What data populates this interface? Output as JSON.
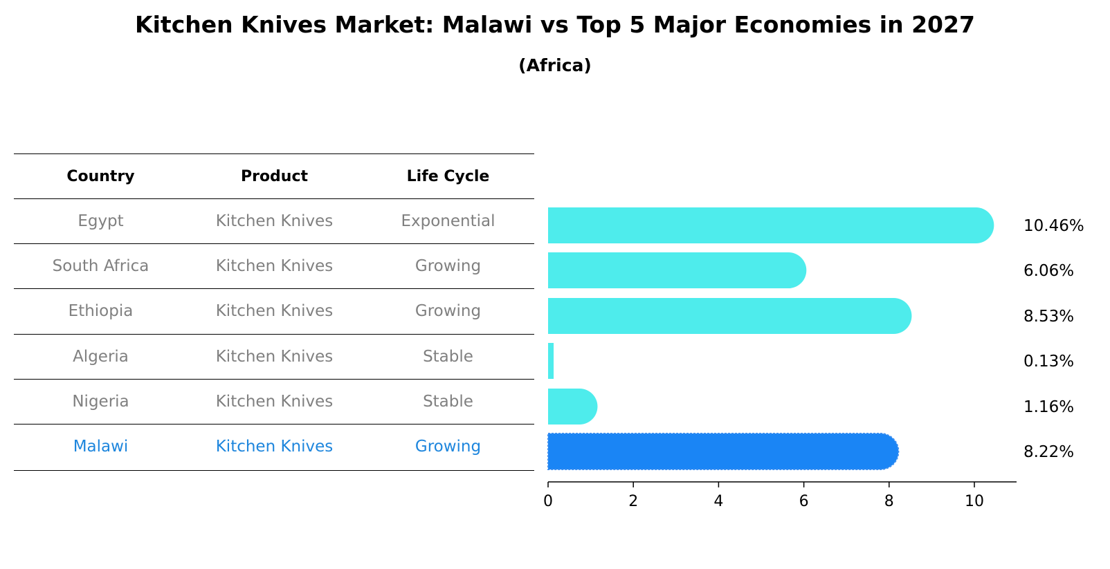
{
  "title": "Kitchen Knives Market: Malawi vs Top 5 Major Economies in 2027",
  "subtitle": "(Africa)",
  "table": {
    "headers": [
      "Country",
      "Product",
      "Life Cycle"
    ],
    "rows": [
      {
        "country": "Egypt",
        "product": "Kitchen Knives",
        "life_cycle": "Exponential"
      },
      {
        "country": "South Africa",
        "product": "Kitchen Knives",
        "life_cycle": "Growing"
      },
      {
        "country": "Ethiopia",
        "product": "Kitchen Knives",
        "life_cycle": "Growing"
      },
      {
        "country": "Algeria",
        "product": "Kitchen Knives",
        "life_cycle": "Stable"
      },
      {
        "country": "Nigeria",
        "product": "Kitchen Knives",
        "life_cycle": "Stable"
      },
      {
        "country": "Malawi",
        "product": "Kitchen Knives",
        "life_cycle": "Growing"
      }
    ]
  },
  "colors": {
    "bar": "#4eecec",
    "highlight_bar": "#1a85f5",
    "highlight_text": "#1e86dd",
    "muted_text": "#808080"
  },
  "chart_data": {
    "type": "bar",
    "orientation": "horizontal",
    "categories": [
      "Egypt",
      "South Africa",
      "Ethiopia",
      "Algeria",
      "Nigeria",
      "Malawi"
    ],
    "values": [
      10.46,
      6.06,
      8.53,
      0.13,
      1.16,
      8.22
    ],
    "value_labels": [
      "10.46%",
      "6.06%",
      "8.53%",
      "0.13%",
      "1.16%",
      "8.22%"
    ],
    "highlight": "Malawi",
    "xlim": [
      0,
      11
    ],
    "xticks": [
      0,
      2,
      4,
      6,
      8,
      10
    ],
    "xlabel": "",
    "ylabel": "",
    "grid": false
  }
}
